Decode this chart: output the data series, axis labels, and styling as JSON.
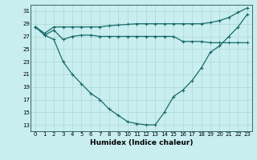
{
  "xlabel": "Humidex (Indice chaleur)",
  "bg_color": "#c8eef0",
  "grid_color": "#b0d8d0",
  "line_color": "#1a6b6b",
  "x": [
    0,
    1,
    2,
    3,
    4,
    5,
    6,
    7,
    8,
    9,
    10,
    11,
    12,
    13,
    14,
    15,
    16,
    17,
    18,
    19,
    20,
    21,
    22,
    23
  ],
  "line1": [
    28.5,
    27.5,
    28.5,
    28.5,
    28.5,
    28.5,
    28.5,
    28.5,
    28.7,
    28.8,
    28.9,
    29.0,
    29.0,
    29.0,
    29.0,
    29.0,
    29.0,
    29.0,
    29.0,
    29.2,
    29.5,
    30.0,
    30.8,
    31.5
  ],
  "line2": [
    28.5,
    27.2,
    28.0,
    26.5,
    27.0,
    27.2,
    27.2,
    27.0,
    27.0,
    27.0,
    27.0,
    27.0,
    27.0,
    27.0,
    27.0,
    27.0,
    26.2,
    26.2,
    26.2,
    26.0,
    26.0,
    26.0,
    26.0,
    26.0
  ],
  "line3": [
    28.5,
    27.2,
    26.5,
    23.0,
    21.0,
    19.5,
    18.0,
    17.0,
    15.5,
    14.5,
    13.5,
    13.2,
    13.0,
    13.0,
    15.0,
    17.5,
    18.5,
    20.0,
    22.0,
    24.5,
    25.5,
    27.0,
    28.5,
    30.5
  ],
  "ylim": [
    12,
    32
  ],
  "xlim": [
    -0.5,
    23.5
  ],
  "yticks": [
    13,
    15,
    17,
    19,
    21,
    23,
    25,
    27,
    29,
    31
  ],
  "xticks": [
    0,
    1,
    2,
    3,
    4,
    5,
    6,
    7,
    8,
    9,
    10,
    11,
    12,
    13,
    14,
    15,
    16,
    17,
    18,
    19,
    20,
    21,
    22,
    23
  ],
  "tick_fontsize": 5.0,
  "xlabel_fontsize": 6.5,
  "marker": "+",
  "markersize": 3.5,
  "linewidth": 0.9
}
